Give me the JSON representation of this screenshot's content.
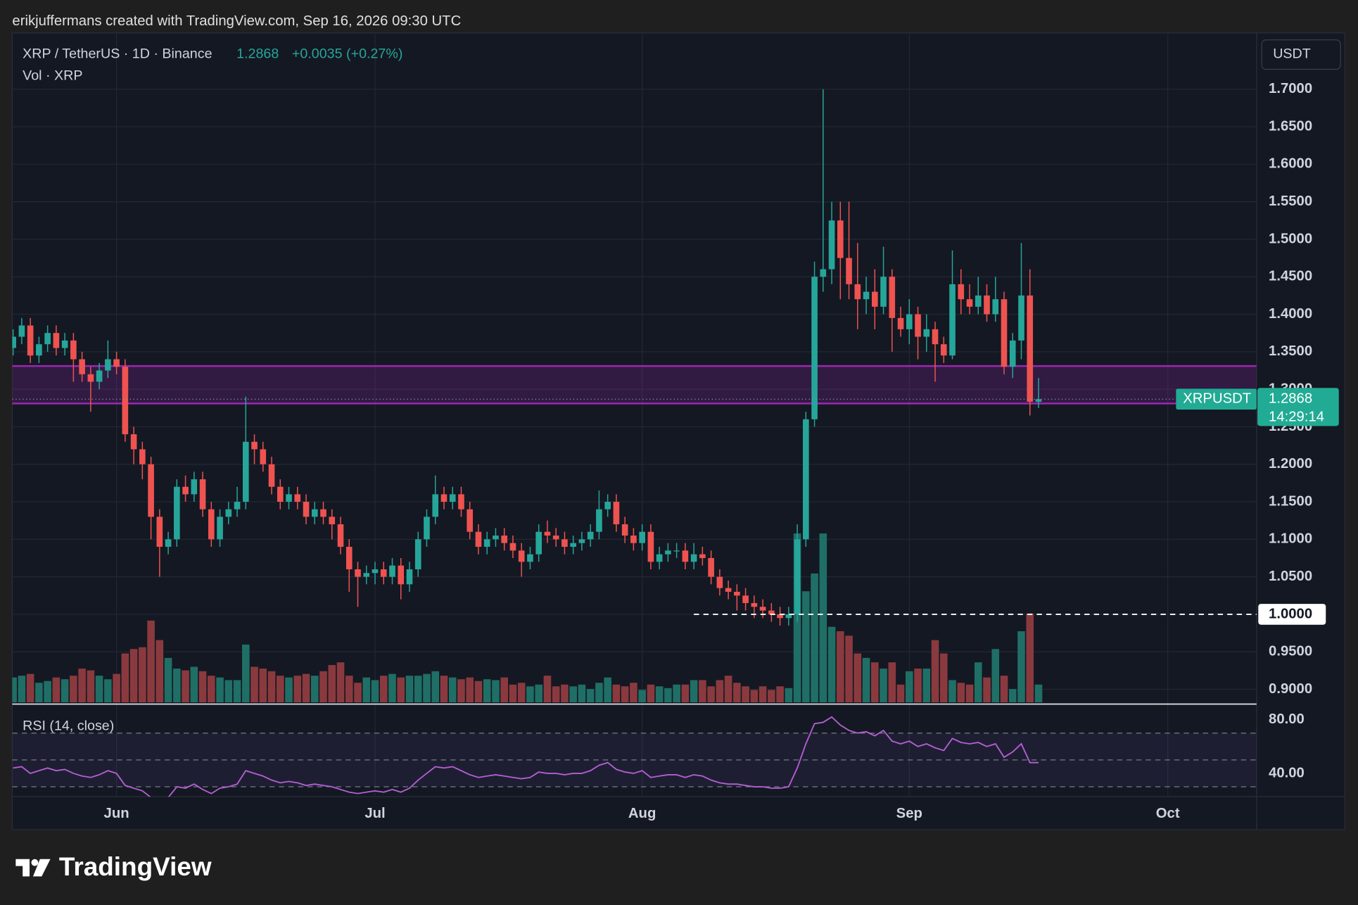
{
  "header": {
    "attribution": "erikjuffermans created with TradingView.com, Sep 16, 2026 09:30 UTC"
  },
  "chart_data": {
    "type": "candlestick",
    "symbol": "XRP / TetherUS · 1D · Binance",
    "last": {
      "value": 1.2868,
      "label": "1.2868"
    },
    "change_label": "+0.0035 (+0.27%)",
    "ticker": "XRPUSDT",
    "countdown": "14:29:14",
    "volume_label": "Vol · XRP",
    "currency": "USDT",
    "colors": {
      "up": "#26a69a",
      "down": "#ef5350",
      "volume_up": "#1f6f66",
      "volume_down": "#8a3a3e"
    },
    "grid": true,
    "open": [
      1.355,
      1.37,
      1.385,
      1.345,
      1.36,
      1.375,
      1.355,
      1.365,
      1.34,
      1.32,
      1.31,
      1.325,
      1.34,
      1.33,
      1.24,
      1.22,
      1.2,
      1.13,
      1.09,
      1.1,
      1.17,
      1.16,
      1.18,
      1.14,
      1.1,
      1.13,
      1.14,
      1.15,
      1.23,
      1.22,
      1.2,
      1.17,
      1.15,
      1.16,
      1.15,
      1.13,
      1.14,
      1.13,
      1.12,
      1.09,
      1.06,
      1.05,
      1.055,
      1.06,
      1.05,
      1.065,
      1.04,
      1.06,
      1.1,
      1.13,
      1.16,
      1.15,
      1.16,
      1.14,
      1.11,
      1.09,
      1.1,
      1.105,
      1.095,
      1.085,
      1.07,
      1.08,
      1.11,
      1.105,
      1.1,
      1.09,
      1.095,
      1.1,
      1.11,
      1.14,
      1.15,
      1.12,
      1.105,
      1.095,
      1.11,
      1.07,
      1.08,
      1.085,
      1.085,
      1.07,
      1.08,
      1.075,
      1.05,
      1.035,
      1.03,
      1.025,
      1.015,
      1.01,
      1.005,
      1.0,
      0.995,
      1.0,
      1.1,
      1.26,
      1.45,
      1.46,
      1.525,
      1.475,
      1.44,
      1.42,
      1.43,
      1.41,
      1.45,
      1.395,
      1.38,
      1.4,
      1.37,
      1.38,
      1.36,
      1.345,
      1.44,
      1.42,
      1.41,
      1.425,
      1.4,
      1.42,
      1.33,
      1.365,
      1.425,
      1.2833
    ],
    "high": [
      1.38,
      1.395,
      1.395,
      1.37,
      1.385,
      1.385,
      1.375,
      1.375,
      1.35,
      1.33,
      1.335,
      1.365,
      1.35,
      1.34,
      1.25,
      1.23,
      1.21,
      1.14,
      1.11,
      1.18,
      1.185,
      1.19,
      1.19,
      1.15,
      1.14,
      1.15,
      1.17,
      1.29,
      1.24,
      1.23,
      1.21,
      1.18,
      1.17,
      1.17,
      1.16,
      1.15,
      1.15,
      1.14,
      1.13,
      1.1,
      1.07,
      1.065,
      1.07,
      1.07,
      1.075,
      1.075,
      1.07,
      1.11,
      1.14,
      1.185,
      1.17,
      1.17,
      1.17,
      1.15,
      1.12,
      1.11,
      1.115,
      1.115,
      1.105,
      1.095,
      1.09,
      1.12,
      1.125,
      1.115,
      1.11,
      1.105,
      1.11,
      1.12,
      1.165,
      1.16,
      1.16,
      1.13,
      1.115,
      1.12,
      1.12,
      1.09,
      1.095,
      1.095,
      1.095,
      1.095,
      1.09,
      1.085,
      1.06,
      1.045,
      1.04,
      1.035,
      1.025,
      1.02,
      1.015,
      1.01,
      1.01,
      1.12,
      1.27,
      1.47,
      1.7,
      1.55,
      1.55,
      1.55,
      1.495,
      1.45,
      1.46,
      1.49,
      1.46,
      1.41,
      1.42,
      1.41,
      1.4,
      1.39,
      1.37,
      1.485,
      1.46,
      1.44,
      1.45,
      1.44,
      1.45,
      1.43,
      1.375,
      1.495,
      1.46,
      1.315
    ],
    "low": [
      1.345,
      1.36,
      1.335,
      1.335,
      1.35,
      1.345,
      1.345,
      1.31,
      1.31,
      1.27,
      1.3,
      1.315,
      1.32,
      1.23,
      1.2,
      1.18,
      1.1,
      1.05,
      1.08,
      1.09,
      1.15,
      1.15,
      1.13,
      1.09,
      1.09,
      1.12,
      1.13,
      1.14,
      1.2,
      1.19,
      1.16,
      1.14,
      1.14,
      1.14,
      1.12,
      1.12,
      1.12,
      1.1,
      1.08,
      1.03,
      1.01,
      1.04,
      1.04,
      1.04,
      1.04,
      1.02,
      1.03,
      1.05,
      1.09,
      1.12,
      1.14,
      1.14,
      1.13,
      1.1,
      1.08,
      1.08,
      1.09,
      1.085,
      1.075,
      1.05,
      1.06,
      1.07,
      1.095,
      1.09,
      1.08,
      1.08,
      1.085,
      1.09,
      1.1,
      1.13,
      1.11,
      1.095,
      1.085,
      1.085,
      1.06,
      1.06,
      1.07,
      1.075,
      1.06,
      1.06,
      1.065,
      1.04,
      1.025,
      1.02,
      1.005,
      1.005,
      0.995,
      0.995,
      0.99,
      0.985,
      0.985,
      0.99,
      1.09,
      1.25,
      1.43,
      1.44,
      1.42,
      1.42,
      1.38,
      1.4,
      1.38,
      1.4,
      1.35,
      1.37,
      1.36,
      1.34,
      1.35,
      1.31,
      1.335,
      1.34,
      1.4,
      1.4,
      1.4,
      1.39,
      1.39,
      1.32,
      1.315,
      1.34,
      1.265,
      1.275
    ],
    "close": [
      1.37,
      1.385,
      1.345,
      1.36,
      1.375,
      1.355,
      1.365,
      1.34,
      1.32,
      1.31,
      1.325,
      1.34,
      1.33,
      1.24,
      1.22,
      1.2,
      1.13,
      1.09,
      1.1,
      1.17,
      1.16,
      1.18,
      1.14,
      1.1,
      1.13,
      1.14,
      1.15,
      1.23,
      1.22,
      1.2,
      1.17,
      1.15,
      1.16,
      1.15,
      1.13,
      1.14,
      1.13,
      1.12,
      1.09,
      1.06,
      1.05,
      1.055,
      1.06,
      1.05,
      1.065,
      1.04,
      1.06,
      1.1,
      1.13,
      1.16,
      1.15,
      1.16,
      1.14,
      1.11,
      1.09,
      1.1,
      1.105,
      1.095,
      1.085,
      1.07,
      1.08,
      1.11,
      1.105,
      1.1,
      1.09,
      1.095,
      1.1,
      1.11,
      1.14,
      1.15,
      1.12,
      1.105,
      1.095,
      1.11,
      1.07,
      1.08,
      1.085,
      1.085,
      1.07,
      1.08,
      1.075,
      1.05,
      1.035,
      1.03,
      1.025,
      1.015,
      1.01,
      1.005,
      1.0,
      0.995,
      1.0,
      1.1,
      1.26,
      1.45,
      1.46,
      1.525,
      1.475,
      1.44,
      1.42,
      1.43,
      1.41,
      1.45,
      1.395,
      1.38,
      1.4,
      1.37,
      1.38,
      1.36,
      1.345,
      1.44,
      1.42,
      1.41,
      1.425,
      1.4,
      1.42,
      1.33,
      1.365,
      1.425,
      1.2833,
      1.2868
    ],
    "volume": [
      28,
      30,
      32,
      22,
      24,
      28,
      26,
      30,
      38,
      36,
      30,
      26,
      32,
      55,
      60,
      62,
      92,
      70,
      50,
      38,
      36,
      40,
      35,
      30,
      28,
      25,
      25,
      65,
      40,
      38,
      35,
      30,
      28,
      30,
      32,
      30,
      35,
      42,
      45,
      30,
      22,
      28,
      25,
      30,
      32,
      28,
      30,
      30,
      32,
      35,
      30,
      28,
      26,
      28,
      24,
      26,
      25,
      28,
      20,
      22,
      18,
      20,
      30,
      18,
      20,
      18,
      20,
      15,
      22,
      28,
      20,
      18,
      22,
      14,
      20,
      18,
      16,
      20,
      20,
      25,
      25,
      18,
      25,
      30,
      22,
      18,
      14,
      18,
      14,
      18,
      16,
      190,
      125,
      145,
      190,
      85,
      80,
      75,
      55,
      50,
      45,
      38,
      45,
      20,
      35,
      38,
      38,
      70,
      55,
      25,
      22,
      20,
      45,
      28,
      60,
      30,
      15,
      80,
      100,
      20
    ],
    "xlim": [
      -0.1,
      144.3
    ],
    "xticks": [
      {
        "value": 12,
        "label": "Jun"
      },
      {
        "value": 42,
        "label": "Jul"
      },
      {
        "value": 73,
        "label": "Aug"
      },
      {
        "value": 104,
        "label": "Sep"
      },
      {
        "value": 134,
        "label": "Oct"
      }
    ],
    "ylim": [
      0.8815,
      1.775
    ],
    "yticks": [
      {
        "value": 1.7,
        "label": "1.7000"
      },
      {
        "value": 1.65,
        "label": "1.6500"
      },
      {
        "value": 1.6,
        "label": "1.6000"
      },
      {
        "value": 1.55,
        "label": "1.5500"
      },
      {
        "value": 1.5,
        "label": "1.5000"
      },
      {
        "value": 1.45,
        "label": "1.4500"
      },
      {
        "value": 1.4,
        "label": "1.4000"
      },
      {
        "value": 1.35,
        "label": "1.3500"
      },
      {
        "value": 1.3,
        "label": "1.3000"
      },
      {
        "value": 1.25,
        "label": "1.2500"
      },
      {
        "value": 1.2,
        "label": "1.2000"
      },
      {
        "value": 1.15,
        "label": "1.1500"
      },
      {
        "value": 1.1,
        "label": "1.1000"
      },
      {
        "value": 1.05,
        "label": "1.0500"
      },
      {
        "value": 1,
        "label": "1.0000"
      },
      {
        "value": 0.95,
        "label": "0.9500"
      },
      {
        "value": 0.9,
        "label": "0.9000"
      }
    ],
    "zone": [
      1.281,
      1.331
    ],
    "zone_color": "#9c27b0",
    "level": {
      "value": 1,
      "label": "1.0000",
      "start": 79
    },
    "rsi": {
      "title": "RSI (14, close)",
      "color": "#b45fd1",
      "values": [
        44,
        45,
        40,
        42,
        44,
        42,
        43,
        40,
        38,
        37,
        39,
        42,
        40,
        31,
        29,
        27,
        22,
        20,
        22,
        30,
        29,
        32,
        28,
        25,
        29,
        30,
        32,
        42,
        40,
        38,
        35,
        33,
        34,
        33,
        31,
        32,
        31,
        30,
        28,
        26,
        25,
        26,
        27,
        26,
        28,
        26,
        29,
        35,
        40,
        45,
        44,
        45,
        42,
        39,
        37,
        38,
        39,
        38,
        37,
        36,
        37,
        41,
        40,
        40,
        39,
        40,
        40,
        42,
        46,
        48,
        43,
        41,
        40,
        42,
        37,
        38,
        39,
        39,
        37,
        39,
        38,
        35,
        33,
        32,
        32,
        31,
        30,
        30,
        29,
        29,
        30,
        44,
        62,
        77,
        78,
        82,
        76,
        72,
        70,
        71,
        68,
        72,
        64,
        62,
        64,
        60,
        62,
        59,
        57,
        66,
        63,
        62,
        63,
        60,
        62,
        52,
        56,
        62,
        48,
        48
      ],
      "ylim": [
        22.6,
        90.3
      ],
      "yticks": [
        {
          "value": 80,
          "label": "80.00"
        },
        {
          "value": 40,
          "label": "40.00"
        }
      ],
      "bands": [
        70,
        50,
        30
      ]
    }
  },
  "footer": {
    "logo": "TradingView"
  }
}
